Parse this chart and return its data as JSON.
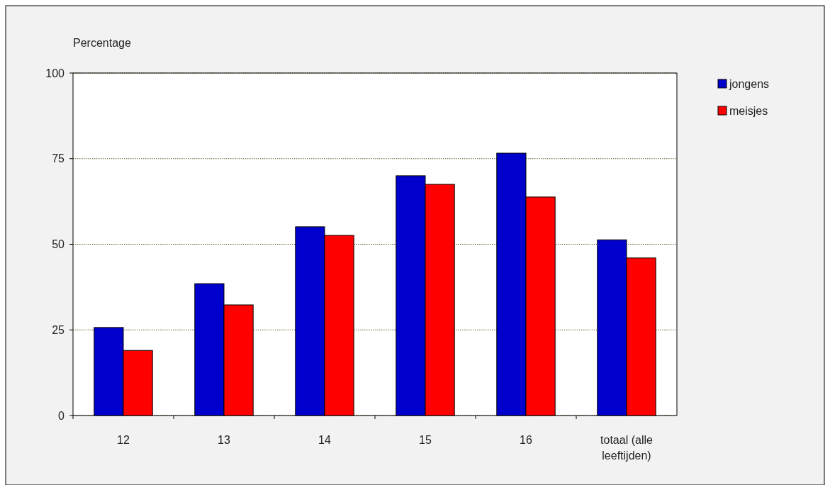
{
  "chart_data": {
    "type": "bar",
    "ylabel": "Percentage",
    "categories": [
      "12",
      "13",
      "14",
      "15",
      "16",
      "totaal (alle leeftijden)"
    ],
    "series": [
      {
        "name": "jongens",
        "color": "#0000cc",
        "values": [
          25.7,
          38.5,
          55.1,
          70.0,
          76.6,
          51.3
        ]
      },
      {
        "name": "meisjes",
        "color": "#ff0000",
        "values": [
          19.0,
          32.3,
          52.6,
          67.5,
          63.8,
          46.0
        ]
      }
    ],
    "ylim": [
      0,
      100
    ],
    "yticks": [
      0,
      25,
      50,
      75,
      100
    ],
    "grid": "y",
    "legend": "top right"
  }
}
